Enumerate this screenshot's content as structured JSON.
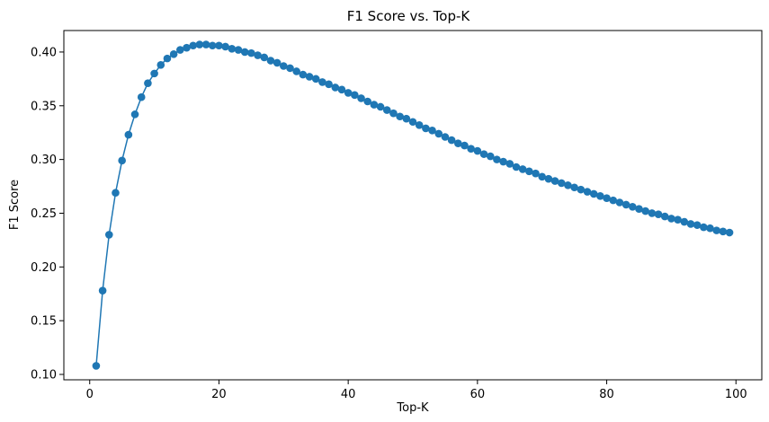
{
  "chart_data": {
    "type": "line",
    "title": "F1 Score vs. Top-K",
    "xlabel": "Top-K",
    "ylabel": "F1 Score",
    "xlim": [
      -4,
      104
    ],
    "ylim": [
      0.095,
      0.42
    ],
    "xticks": [
      0,
      20,
      40,
      60,
      80,
      100
    ],
    "yticks": [
      0.1,
      0.15,
      0.2,
      0.25,
      0.3,
      0.35,
      0.4
    ],
    "xtick_labels": [
      "0",
      "20",
      "40",
      "60",
      "80",
      "100"
    ],
    "ytick_labels": [
      "0.10",
      "0.15",
      "0.20",
      "0.25",
      "0.30",
      "0.35",
      "0.40"
    ],
    "grid": false,
    "marker": "circle",
    "series_color": "#1f77b4",
    "series": [
      {
        "x": [
          1,
          2,
          3,
          4,
          5,
          6,
          7,
          8,
          9,
          10,
          11,
          12,
          13,
          14,
          15,
          16,
          17,
          18,
          19,
          20,
          21,
          22,
          23,
          24,
          25,
          26,
          27,
          28,
          29,
          30,
          31,
          32,
          33,
          34,
          35,
          36,
          37,
          38,
          39,
          40,
          41,
          42,
          43,
          44,
          45,
          46,
          47,
          48,
          49,
          50,
          51,
          52,
          53,
          54,
          55,
          56,
          57,
          58,
          59,
          60,
          61,
          62,
          63,
          64,
          65,
          66,
          67,
          68,
          69,
          70,
          71,
          72,
          73,
          74,
          75,
          76,
          77,
          78,
          79,
          80,
          81,
          82,
          83,
          84,
          85,
          86,
          87,
          88,
          89,
          90,
          91,
          92,
          93,
          94,
          95,
          96,
          97,
          98,
          99
        ],
        "values": [
          0.108,
          0.178,
          0.23,
          0.269,
          0.299,
          0.323,
          0.342,
          0.358,
          0.371,
          0.38,
          0.388,
          0.394,
          0.398,
          0.402,
          0.404,
          0.406,
          0.407,
          0.407,
          0.406,
          0.406,
          0.405,
          0.403,
          0.402,
          0.4,
          0.399,
          0.397,
          0.395,
          0.392,
          0.39,
          0.387,
          0.385,
          0.382,
          0.379,
          0.377,
          0.375,
          0.372,
          0.37,
          0.367,
          0.365,
          0.362,
          0.36,
          0.357,
          0.354,
          0.351,
          0.349,
          0.346,
          0.343,
          0.34,
          0.338,
          0.335,
          0.332,
          0.329,
          0.327,
          0.324,
          0.321,
          0.318,
          0.315,
          0.313,
          0.31,
          0.308,
          0.305,
          0.303,
          0.3,
          0.298,
          0.296,
          0.293,
          0.291,
          0.289,
          0.287,
          0.284,
          0.282,
          0.28,
          0.278,
          0.276,
          0.274,
          0.272,
          0.27,
          0.268,
          0.266,
          0.264,
          0.262,
          0.26,
          0.258,
          0.256,
          0.254,
          0.252,
          0.25,
          0.249,
          0.247,
          0.245,
          0.244,
          0.242,
          0.24,
          0.239,
          0.237,
          0.236,
          0.234,
          0.233,
          0.232
        ]
      }
    ]
  }
}
